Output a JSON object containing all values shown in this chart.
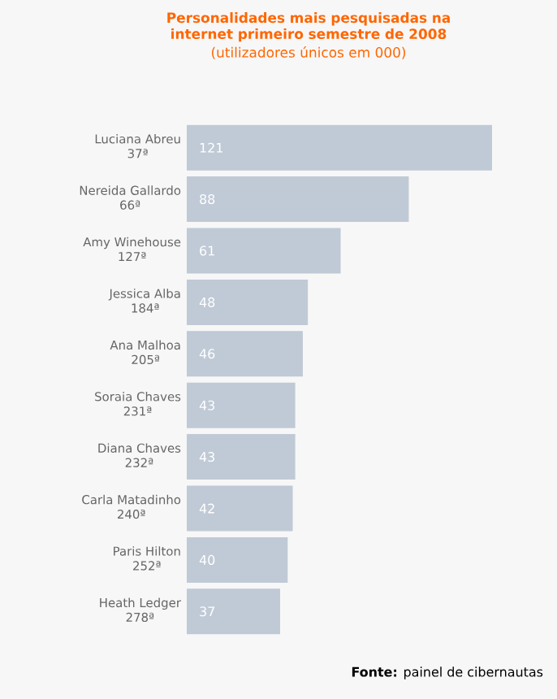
{
  "chart_data": {
    "type": "bar",
    "orientation": "horizontal",
    "title": "Personalidades mais pesquisadas na internet primeiro semestre de 2008",
    "subtitle": "(utilizadores únicos em 000)",
    "categories": [
      "Luciana Abreu",
      "Nereida Gallardo",
      "Amy Winehouse",
      "Jessica Alba",
      "Ana Malhoa",
      "Soraia Chaves",
      "Diana Chaves",
      "Carla Matadinho",
      "Paris Hilton",
      "Heath Ledger"
    ],
    "values": [
      121,
      88,
      61,
      48,
      46,
      43,
      43,
      42,
      40,
      37
    ],
    "color": "#c0cad6",
    "data_labels": true,
    "annotations": [
      "37ª",
      "66ª",
      "127ª",
      "184ª",
      "205ª",
      "231ª",
      "232ª",
      "240ª",
      "252ª",
      "278ª",
      "**Fonte:** painel de cibernautas"
    ]
  }
}
